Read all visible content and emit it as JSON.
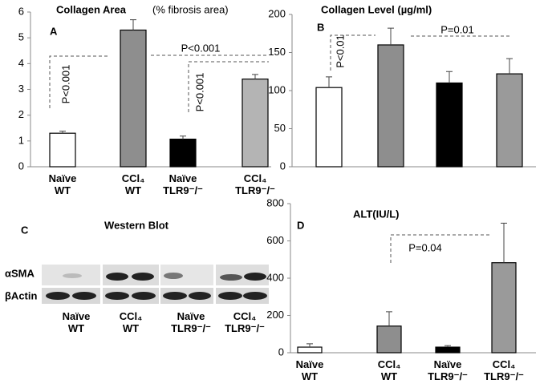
{
  "chart_data": [
    {
      "type": "bar",
      "label": "A",
      "title": "Collagen Area",
      "subtitle": "(% fibrosis area)",
      "categories": [
        "Naïve WT",
        "CCl₄ WT",
        "Naïve TLR9⁻/⁻",
        "CCl₄ TLR9⁻/⁻"
      ],
      "values": [
        1.3,
        5.3,
        1.07,
        3.4
      ],
      "errors": [
        0.08,
        0.4,
        0.12,
        0.18
      ],
      "colors": [
        "#ffffff",
        "#8e8e8e",
        "#000000",
        "#b4b4b4"
      ],
      "ylim": [
        0,
        6
      ],
      "yticks": [
        0,
        1,
        2,
        3,
        4,
        5,
        6
      ],
      "annotations": [
        "P<0.001",
        "P<0.001",
        "P<0.001"
      ]
    },
    {
      "type": "bar",
      "label": "B",
      "title": "Collagen Level (µg/ml)",
      "categories": [
        null,
        null,
        null,
        null
      ],
      "values": [
        104,
        160,
        110,
        122
      ],
      "errors": [
        14,
        22,
        15,
        20
      ],
      "colors": [
        "#ffffff",
        "#8e8e8e",
        "#000000",
        "#9a9a9a"
      ],
      "ylim": [
        0,
        200
      ],
      "yticks": [
        0,
        50,
        100,
        150,
        200
      ],
      "annotations": [
        "P<0.01",
        "P=0.01"
      ]
    },
    {
      "type": "bar",
      "label": "D",
      "title": "ALT(IU/L)",
      "categories": [
        "Naïve WT",
        "CCl₄ WT",
        "Naïve TLR9⁻/⁻",
        "CCl₄ TLR9⁻/⁻"
      ],
      "values": [
        30,
        143,
        30,
        483
      ],
      "errors": [
        18,
        77,
        8,
        212
      ],
      "colors": [
        "#ffffff",
        "#8e8e8e",
        "#000000",
        "#9a9a9a"
      ],
      "ylim": [
        0,
        800
      ],
      "yticks": [
        0,
        200,
        400,
        600,
        800
      ],
      "annotations": [
        "P=0.04"
      ]
    }
  ],
  "western_blot": {
    "label": "C",
    "title": "Western Blot",
    "rows": [
      "αSMA",
      "βActin"
    ],
    "lanes": [
      "Naïve WT",
      "CCl₄ WT",
      "Naïve TLR9⁻/⁻",
      "CCl₄ TLR9⁻/⁻"
    ]
  }
}
